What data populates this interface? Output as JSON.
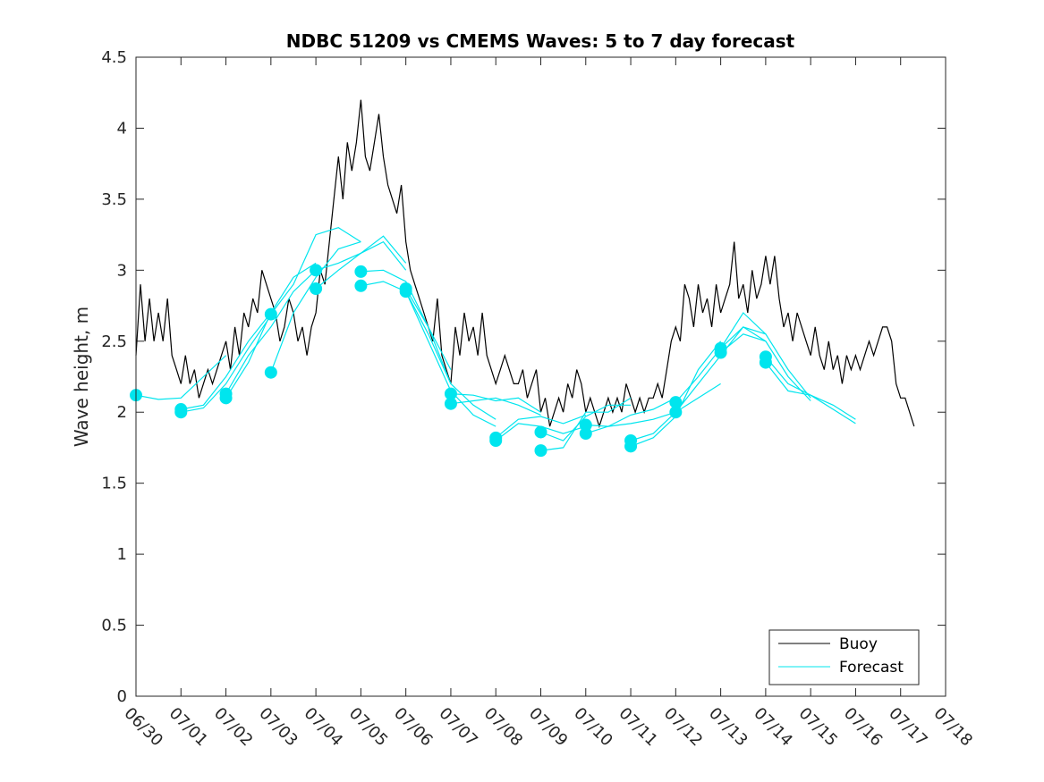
{
  "chart_data": {
    "type": "line",
    "title": "NDBC 51209 vs CMEMS Waves: 5 to 7 day forecast",
    "xlabel": "",
    "ylabel": "Wave height, m",
    "xlim_days": [
      0,
      18
    ],
    "ylim": [
      0,
      4.5
    ],
    "x_tick_labels": [
      "06/30",
      "07/01",
      "07/02",
      "07/03",
      "07/04",
      "07/05",
      "07/06",
      "07/07",
      "07/08",
      "07/09",
      "07/10",
      "07/11",
      "07/12",
      "07/13",
      "07/14",
      "07/15",
      "07/16",
      "07/17",
      "07/18"
    ],
    "y_ticks": [
      0,
      0.5,
      1,
      1.5,
      2,
      2.5,
      3,
      3.5,
      4,
      4.5
    ],
    "y_tick_labels": [
      "0",
      "0.5",
      "1",
      "1.5",
      "2",
      "2.5",
      "3",
      "3.5",
      "4",
      "4.5"
    ],
    "grid": false,
    "legend_position": "bottom-right",
    "colors": {
      "buoy": "#000000",
      "forecast": "#00e5ee"
    },
    "series": [
      {
        "name": "Buoy",
        "x": [
          0,
          0.1,
          0.2,
          0.3,
          0.4,
          0.5,
          0.6,
          0.7,
          0.8,
          0.9,
          1.0,
          1.1,
          1.2,
          1.3,
          1.4,
          1.5,
          1.6,
          1.7,
          1.8,
          1.9,
          2.0,
          2.1,
          2.2,
          2.3,
          2.4,
          2.5,
          2.6,
          2.7,
          2.8,
          2.9,
          3.0,
          3.1,
          3.2,
          3.3,
          3.4,
          3.5,
          3.6,
          3.7,
          3.8,
          3.9,
          4.0,
          4.1,
          4.2,
          4.3,
          4.4,
          4.5,
          4.6,
          4.7,
          4.8,
          4.9,
          5.0,
          5.1,
          5.2,
          5.3,
          5.4,
          5.5,
          5.6,
          5.7,
          5.8,
          5.9,
          6.0,
          6.1,
          6.2,
          6.3,
          6.4,
          6.5,
          6.6,
          6.7,
          6.8,
          6.9,
          7.0,
          7.1,
          7.2,
          7.3,
          7.4,
          7.5,
          7.6,
          7.7,
          7.8,
          7.9,
          8.0,
          8.1,
          8.2,
          8.3,
          8.4,
          8.5,
          8.6,
          8.7,
          8.8,
          8.9,
          9.0,
          9.1,
          9.2,
          9.3,
          9.4,
          9.5,
          9.6,
          9.7,
          9.8,
          9.9,
          10.0,
          10.1,
          10.2,
          10.3,
          10.4,
          10.5,
          10.6,
          10.7,
          10.8,
          10.9,
          11.0,
          11.1,
          11.2,
          11.3,
          11.4,
          11.5,
          11.6,
          11.7,
          11.8,
          11.9,
          12.0,
          12.1,
          12.2,
          12.3,
          12.4,
          12.5,
          12.6,
          12.7,
          12.8,
          12.9,
          13.0,
          13.1,
          13.2,
          13.3,
          13.4,
          13.5,
          13.6,
          13.7,
          13.8,
          13.9,
          14.0,
          14.1,
          14.2,
          14.3,
          14.4,
          14.5,
          14.6,
          14.7,
          14.8,
          14.9,
          15.0,
          15.1,
          15.2,
          15.3,
          15.4,
          15.5,
          15.6,
          15.7,
          15.8,
          15.9,
          16.0,
          16.1,
          16.2,
          16.3,
          16.4,
          16.5,
          16.6,
          16.7,
          16.8,
          16.9,
          17.0,
          17.1,
          17.2,
          17.3
        ],
        "values": [
          2.4,
          2.9,
          2.5,
          2.8,
          2.5,
          2.7,
          2.5,
          2.8,
          2.4,
          2.3,
          2.2,
          2.4,
          2.2,
          2.3,
          2.1,
          2.2,
          2.3,
          2.2,
          2.3,
          2.4,
          2.5,
          2.3,
          2.6,
          2.4,
          2.7,
          2.6,
          2.8,
          2.7,
          3.0,
          2.9,
          2.8,
          2.7,
          2.5,
          2.6,
          2.8,
          2.7,
          2.5,
          2.6,
          2.4,
          2.6,
          2.7,
          3.0,
          2.9,
          3.2,
          3.5,
          3.8,
          3.5,
          3.9,
          3.7,
          3.9,
          4.2,
          3.8,
          3.7,
          3.9,
          4.1,
          3.8,
          3.6,
          3.5,
          3.4,
          3.6,
          3.2,
          3.0,
          2.9,
          2.8,
          2.7,
          2.6,
          2.5,
          2.8,
          2.4,
          2.3,
          2.2,
          2.6,
          2.4,
          2.7,
          2.5,
          2.6,
          2.4,
          2.7,
          2.4,
          2.3,
          2.2,
          2.3,
          2.4,
          2.3,
          2.2,
          2.2,
          2.3,
          2.1,
          2.2,
          2.3,
          2.0,
          2.1,
          1.9,
          2.0,
          2.1,
          2.0,
          2.2,
          2.1,
          2.3,
          2.2,
          2.0,
          2.1,
          2.0,
          1.9,
          2.0,
          2.1,
          2.0,
          2.1,
          2.0,
          2.2,
          2.1,
          2.0,
          2.1,
          2.0,
          2.1,
          2.1,
          2.2,
          2.1,
          2.3,
          2.5,
          2.6,
          2.5,
          2.9,
          2.8,
          2.6,
          2.9,
          2.7,
          2.8,
          2.6,
          2.9,
          2.7,
          2.8,
          2.9,
          3.2,
          2.8,
          2.9,
          2.7,
          3.0,
          2.8,
          2.9,
          3.1,
          2.9,
          3.1,
          2.8,
          2.6,
          2.7,
          2.5,
          2.7,
          2.6,
          2.5,
          2.4,
          2.6,
          2.4,
          2.3,
          2.5,
          2.3,
          2.4,
          2.2,
          2.4,
          2.3,
          2.4,
          2.3,
          2.4,
          2.5,
          2.4,
          2.5,
          2.6,
          2.6,
          2.5,
          2.2,
          2.1,
          2.1,
          2.0,
          1.9
        ]
      },
      {
        "name": "Forecast",
        "runs": [
          {
            "x": [
              0,
              0.5,
              1,
              1.5,
              2
            ],
            "values": [
              2.12,
              2.09,
              2.1,
              2.25,
              2.4
            ],
            "marker": 2.12
          },
          {
            "x": [
              1,
              1.5,
              2,
              2.5,
              3
            ],
            "values": [
              2.0,
              2.03,
              2.2,
              2.45,
              2.68
            ],
            "marker": 2.0
          },
          {
            "x": [
              1,
              1.5,
              2,
              2.5,
              3
            ],
            "values": [
              2.02,
              2.05,
              2.25,
              2.5,
              2.7
            ],
            "marker": 2.02
          },
          {
            "x": [
              2,
              2.5,
              3,
              3.5,
              4
            ],
            "values": [
              2.1,
              2.35,
              2.7,
              2.95,
              3.05
            ],
            "marker": 2.1
          },
          {
            "x": [
              2,
              2.5,
              3,
              3.5,
              4
            ],
            "values": [
              2.13,
              2.4,
              2.6,
              2.85,
              3.0
            ],
            "marker": 2.13
          },
          {
            "x": [
              3,
              3.5,
              4,
              4.5,
              5
            ],
            "values": [
              2.69,
              2.9,
              3.25,
              3.3,
              3.2
            ],
            "marker": 2.69
          },
          {
            "x": [
              3,
              3.5,
              4,
              4.5,
              5
            ],
            "values": [
              2.28,
              2.7,
              2.95,
              3.15,
              3.2
            ],
            "marker": 2.28
          },
          {
            "x": [
              4,
              4.5,
              5,
              5.5,
              6
            ],
            "values": [
              3.0,
              3.05,
              3.12,
              3.24,
              3.05
            ],
            "marker": 3.0
          },
          {
            "x": [
              4,
              4.5,
              5,
              5.5,
              6
            ],
            "values": [
              2.87,
              3.0,
              3.12,
              3.2,
              3.0
            ],
            "marker": 2.87
          },
          {
            "x": [
              5,
              5.5,
              6,
              6.5,
              7
            ],
            "values": [
              2.99,
              3.0,
              2.92,
              2.6,
              2.3
            ],
            "marker": 2.99
          },
          {
            "x": [
              5,
              5.5,
              6,
              6.5,
              7
            ],
            "values": [
              2.89,
              2.92,
              2.85,
              2.55,
              2.2
            ],
            "marker": 2.89
          },
          {
            "x": [
              6,
              6.5,
              7,
              7.5,
              8
            ],
            "values": [
              2.87,
              2.6,
              2.2,
              2.05,
              1.95
            ],
            "marker": 2.87
          },
          {
            "x": [
              6,
              6.5,
              7,
              7.5,
              8
            ],
            "values": [
              2.85,
              2.5,
              2.15,
              1.98,
              1.9
            ],
            "marker": 2.85
          },
          {
            "x": [
              7,
              7.5,
              8,
              8.5,
              9
            ],
            "values": [
              2.13,
              2.12,
              2.08,
              2.1,
              2.0
            ],
            "marker": 2.13
          },
          {
            "x": [
              7,
              7.5,
              8,
              8.5,
              9
            ],
            "values": [
              2.06,
              2.08,
              2.1,
              2.05,
              1.98
            ],
            "marker": 2.06
          },
          {
            "x": [
              8,
              8.5,
              9,
              9.5,
              10
            ],
            "values": [
              1.82,
              1.95,
              1.97,
              1.92,
              1.98
            ],
            "marker": 1.82
          },
          {
            "x": [
              8,
              8.5,
              9,
              9.5,
              10
            ],
            "values": [
              1.8,
              1.92,
              1.9,
              1.85,
              1.9
            ],
            "marker": 1.8
          },
          {
            "x": [
              9,
              9.5,
              10,
              10.5,
              11
            ],
            "values": [
              1.86,
              1.8,
              1.97,
              2.05,
              2.05
            ],
            "marker": 1.86
          },
          {
            "x": [
              9,
              9.5,
              10,
              10.5,
              11
            ],
            "values": [
              1.73,
              1.75,
              2.0,
              2.0,
              2.1
            ],
            "marker": 1.73
          },
          {
            "x": [
              10,
              10.5,
              11,
              11.5,
              12
            ],
            "values": [
              1.91,
              1.9,
              1.98,
              2.02,
              2.1
            ],
            "marker": 1.91
          },
          {
            "x": [
              10,
              10.5,
              11,
              11.5,
              12
            ],
            "values": [
              1.85,
              1.9,
              1.92,
              1.95,
              2.0
            ],
            "marker": 1.85
          },
          {
            "x": [
              11,
              11.5,
              12,
              12.5,
              13
            ],
            "values": [
              1.8,
              1.85,
              2.0,
              2.1,
              2.2
            ],
            "marker": 1.8
          },
          {
            "x": [
              11,
              11.5,
              12,
              12.5,
              13
            ],
            "values": [
              1.76,
              1.82,
              1.97,
              2.3,
              2.5
            ],
            "marker": 1.76
          },
          {
            "x": [
              12,
              12.5,
              13,
              13.5,
              14
            ],
            "values": [
              2.07,
              2.25,
              2.45,
              2.7,
              2.55
            ],
            "marker": 2.07
          },
          {
            "x": [
              12,
              12.5,
              13,
              13.5,
              14
            ],
            "values": [
              2.0,
              2.2,
              2.4,
              2.6,
              2.5
            ],
            "marker": 2.0
          },
          {
            "x": [
              13,
              13.5,
              14,
              14.5,
              15
            ],
            "values": [
              2.45,
              2.6,
              2.55,
              2.3,
              2.1
            ],
            "marker": 2.45
          },
          {
            "x": [
              13,
              13.5,
              14,
              14.5,
              15
            ],
            "values": [
              2.42,
              2.55,
              2.5,
              2.25,
              2.08
            ],
            "marker": 2.42
          },
          {
            "x": [
              14,
              14.5,
              15,
              15.5,
              16
            ],
            "values": [
              2.39,
              2.2,
              2.12,
              2.05,
              1.95
            ],
            "marker": 2.39
          },
          {
            "x": [
              14,
              14.5,
              15,
              15.5,
              16
            ],
            "values": [
              2.35,
              2.15,
              2.12,
              2.02,
              1.92
            ],
            "marker": 2.35
          }
        ]
      }
    ],
    "legend": [
      {
        "label": "Buoy",
        "color": "#000000"
      },
      {
        "label": "Forecast",
        "color": "#00e5ee"
      }
    ]
  }
}
